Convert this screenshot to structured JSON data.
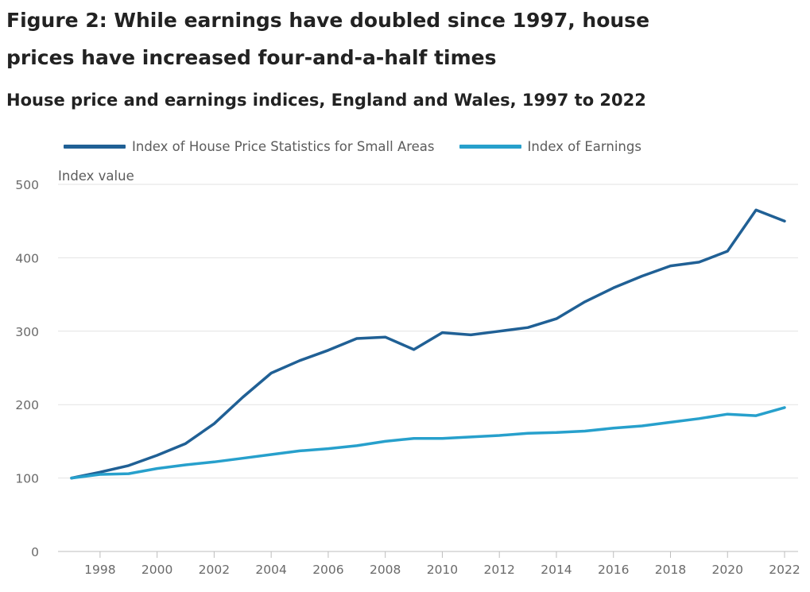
{
  "figure": {
    "title": "Figure 2: While earnings have doubled since 1997, house prices have increased four-and-a-half times"
  },
  "chart_data": {
    "type": "line",
    "title": "House price and earnings indices, England and Wales, 1997 to 2022",
    "xlabel": "",
    "ylabel": "Index value",
    "xlim": [
      1997,
      2022
    ],
    "ylim": [
      0,
      500
    ],
    "yticks": [
      0,
      100,
      200,
      300,
      400,
      500
    ],
    "xticks": [
      1998,
      2000,
      2002,
      2004,
      2006,
      2008,
      2010,
      2012,
      2014,
      2016,
      2018,
      2020,
      2022
    ],
    "grid": "horizontal",
    "legend_position": "top-left",
    "x": [
      1997,
      1998,
      1999,
      2000,
      2001,
      2002,
      2003,
      2004,
      2005,
      2006,
      2007,
      2008,
      2009,
      2010,
      2011,
      2012,
      2013,
      2014,
      2015,
      2016,
      2017,
      2018,
      2019,
      2020,
      2021,
      2022
    ],
    "series": [
      {
        "name": "Index of House Price Statistics for Small Areas",
        "color": "#206095",
        "values": [
          100,
          108,
          117,
          131,
          147,
          174,
          210,
          243,
          260,
          274,
          290,
          292,
          275,
          298,
          295,
          300,
          305,
          317,
          340,
          359,
          375,
          389,
          394,
          409,
          465,
          450
        ]
      },
      {
        "name": "Index of Earnings",
        "color": "#27a0cc",
        "values": [
          100,
          105,
          106,
          113,
          118,
          122,
          127,
          132,
          137,
          140,
          144,
          150,
          154,
          154,
          156,
          158,
          161,
          162,
          164,
          168,
          171,
          176,
          181,
          187,
          185,
          196
        ]
      }
    ]
  }
}
